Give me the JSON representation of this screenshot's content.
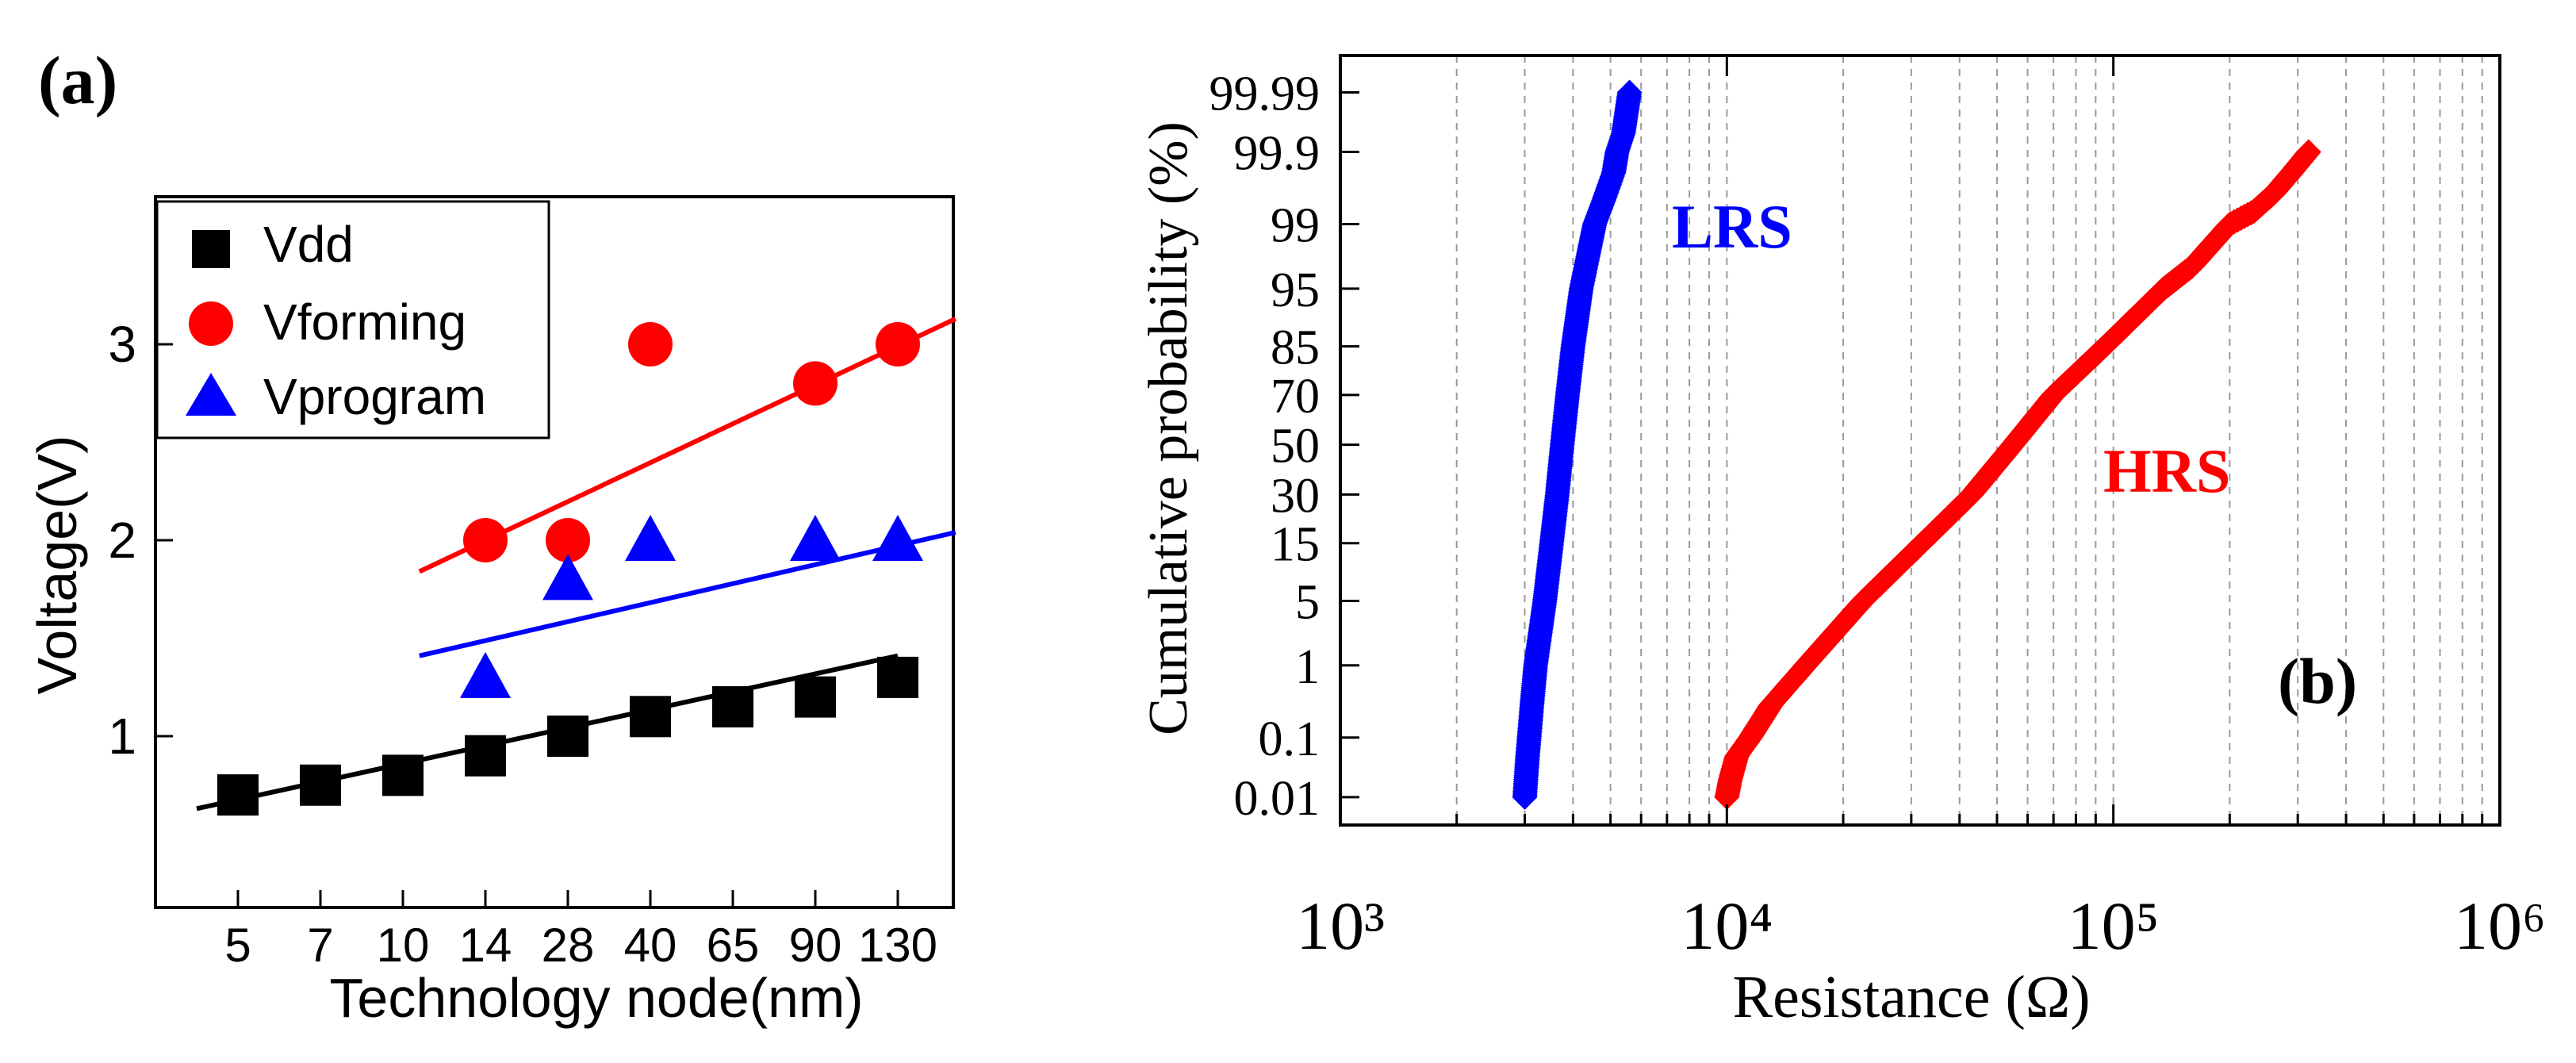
{
  "chart_data": [
    {
      "type": "scatter",
      "panel_label": "(a)",
      "title": "",
      "xlabel": "Technology node(nm)",
      "ylabel": "Voltage(V)",
      "categories": [
        "5",
        "7",
        "10",
        "14",
        "28",
        "40",
        "65",
        "90",
        "130"
      ],
      "yticks": [
        "1",
        "2",
        "3"
      ],
      "ylim": [
        0.05,
        3.8
      ],
      "legend": {
        "position": "top-left",
        "entries": [
          "Vdd",
          "Vforming",
          "Vprogram"
        ]
      },
      "series": [
        {
          "name": "Vdd",
          "marker": "square",
          "color": "#000000",
          "points": [
            [
              "5",
              0.7
            ],
            [
              "7",
              0.75
            ],
            [
              "10",
              0.8
            ],
            [
              "14",
              0.9
            ],
            [
              "28",
              1.0
            ],
            [
              "40",
              1.1
            ],
            [
              "65",
              1.15
            ],
            [
              "90",
              1.2
            ],
            [
              "130",
              1.3
            ]
          ],
          "fit": {
            "from_index": -0.5,
            "from_value": 0.63,
            "to_index": 8.0,
            "to_value": 1.41
          }
        },
        {
          "name": "Vforming",
          "marker": "circle",
          "color": "#ff0000",
          "points": [
            [
              "14",
              2.0
            ],
            [
              "28",
              2.0
            ],
            [
              "40",
              3.0
            ],
            [
              "90",
              2.8
            ],
            [
              "130",
              3.0
            ]
          ],
          "fit": {
            "from_index": 2.2,
            "from_value": 1.84,
            "to_index": 8.7,
            "to_value": 3.13
          }
        },
        {
          "name": "Vprogram",
          "marker": "triangle",
          "color": "#0000ff",
          "points": [
            [
              "14",
              1.3
            ],
            [
              "28",
              1.8
            ],
            [
              "40",
              2.0
            ],
            [
              "90",
              2.0
            ],
            [
              "130",
              2.0
            ]
          ],
          "fit": {
            "from_index": 2.2,
            "from_value": 1.41,
            "to_index": 8.7,
            "to_value": 2.04
          }
        }
      ]
    },
    {
      "type": "scatter",
      "panel_label": "(b)",
      "title": "",
      "xlabel": "Resistance (Ω)",
      "ylabel": "Cumulative probability (%)",
      "xscale": "log",
      "xlim": [
        1000,
        1000000
      ],
      "xticks": [
        "10³",
        "10⁴",
        "10⁵",
        "10⁶"
      ],
      "yscale": "normal probability",
      "ylim": [
        0.003,
        99.998
      ],
      "yticks": [
        "0.01",
        "0.1",
        "1",
        "5",
        "15",
        "30",
        "50",
        "70",
        "85",
        "95",
        "99",
        "99.9",
        "99.99"
      ],
      "grid": "vertical dashed at each decade subdivision",
      "annotations": [
        "LRS",
        "HRS"
      ],
      "series": [
        {
          "name": "LRS",
          "marker": "diamond",
          "color": "#0000ff",
          "quantiles": [
            [
              0.01,
              3000
            ],
            [
              0.02,
              3020
            ],
            [
              0.05,
              3050
            ],
            [
              0.1,
              3080
            ],
            [
              0.3,
              3130
            ],
            [
              1,
              3200
            ],
            [
              5,
              3380
            ],
            [
              15,
              3520
            ],
            [
              30,
              3640
            ],
            [
              50,
              3750
            ],
            [
              70,
              3870
            ],
            [
              85,
              4000
            ],
            [
              95,
              4200
            ],
            [
              99,
              4550
            ],
            [
              99.5,
              4800
            ],
            [
              99.8,
              5100
            ],
            [
              99.9,
              5200
            ],
            [
              99.95,
              5400
            ],
            [
              99.99,
              5600
            ]
          ]
        },
        {
          "name": "HRS",
          "marker": "diamond",
          "color": "#ff0000",
          "quantiles": [
            [
              0.01,
              10000
            ],
            [
              0.02,
              10200
            ],
            [
              0.05,
              10600
            ],
            [
              0.1,
              11500
            ],
            [
              0.3,
              13000
            ],
            [
              1,
              16000
            ],
            [
              5,
              22500
            ],
            [
              15,
              32000
            ],
            [
              30,
              43000
            ],
            [
              50,
              55000
            ],
            [
              70,
              70000
            ],
            [
              85,
              95000
            ],
            [
              95,
              135000
            ],
            [
              97,
              160000
            ],
            [
              99,
              200000
            ],
            [
              99.3,
              230000
            ],
            [
              99.6,
              260000
            ],
            [
              99.8,
              290000
            ],
            [
              99.9,
              320000
            ]
          ]
        }
      ]
    }
  ]
}
